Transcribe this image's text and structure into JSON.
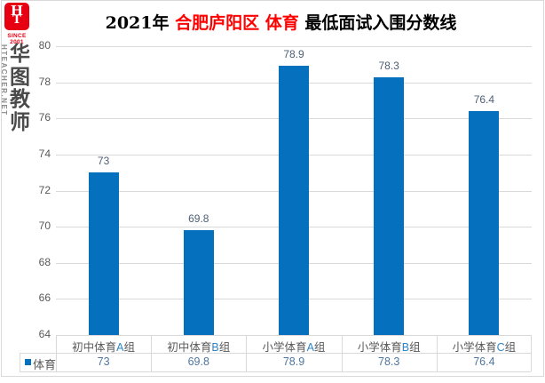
{
  "logo": {
    "monogram_top": "H",
    "monogram_bottom": "T",
    "since_label": "SINCE 2001",
    "site_vertical": "HTEACHER.NET",
    "brand_vertical": "华\n图\n教\n师",
    "logo_red": "#E60012"
  },
  "title": {
    "segments": [
      {
        "text": "2021年 ",
        "color": "#000000"
      },
      {
        "text": "合肥庐阳区 ",
        "color": "#FF0000"
      },
      {
        "text": "体育",
        "color": "#FF0000"
      },
      {
        "text": " 最低面试入围分数线",
        "color": "#000000"
      }
    ]
  },
  "chart_data": {
    "type": "bar",
    "title": "2021年 合肥庐阳区 体育 最低面试入围分数线",
    "categories": [
      {
        "prefix": "初中体育",
        "letter": "A",
        "suffix": "组"
      },
      {
        "prefix": "初中体育",
        "letter": "B",
        "suffix": "组"
      },
      {
        "prefix": "小学体育",
        "letter": "A",
        "suffix": "组"
      },
      {
        "prefix": "小学体育",
        "letter": "B",
        "suffix": "组"
      },
      {
        "prefix": "小学体育",
        "letter": "C",
        "suffix": "组"
      }
    ],
    "series": [
      {
        "name": "体育",
        "values": [
          73,
          69.8,
          78.9,
          78.3,
          76.4
        ]
      }
    ],
    "data_labels": [
      "73",
      "69.8",
      "78.9",
      "78.3",
      "76.4"
    ],
    "table_values": [
      "73",
      "69.8",
      "78.9",
      "78.3",
      "76.4"
    ],
    "ylabel": "",
    "xlabel": "",
    "ylim": [
      64,
      80
    ],
    "yticks": [
      80,
      78,
      76,
      74,
      72,
      70,
      68,
      66,
      64
    ],
    "grid": true,
    "data_table_shown": true,
    "legend_position": "data-table-left",
    "bar_color": "#0571BE",
    "gridline_color": "#D9D9D9",
    "legend": {
      "name": "体育",
      "marker_color": "#0571BE"
    }
  }
}
